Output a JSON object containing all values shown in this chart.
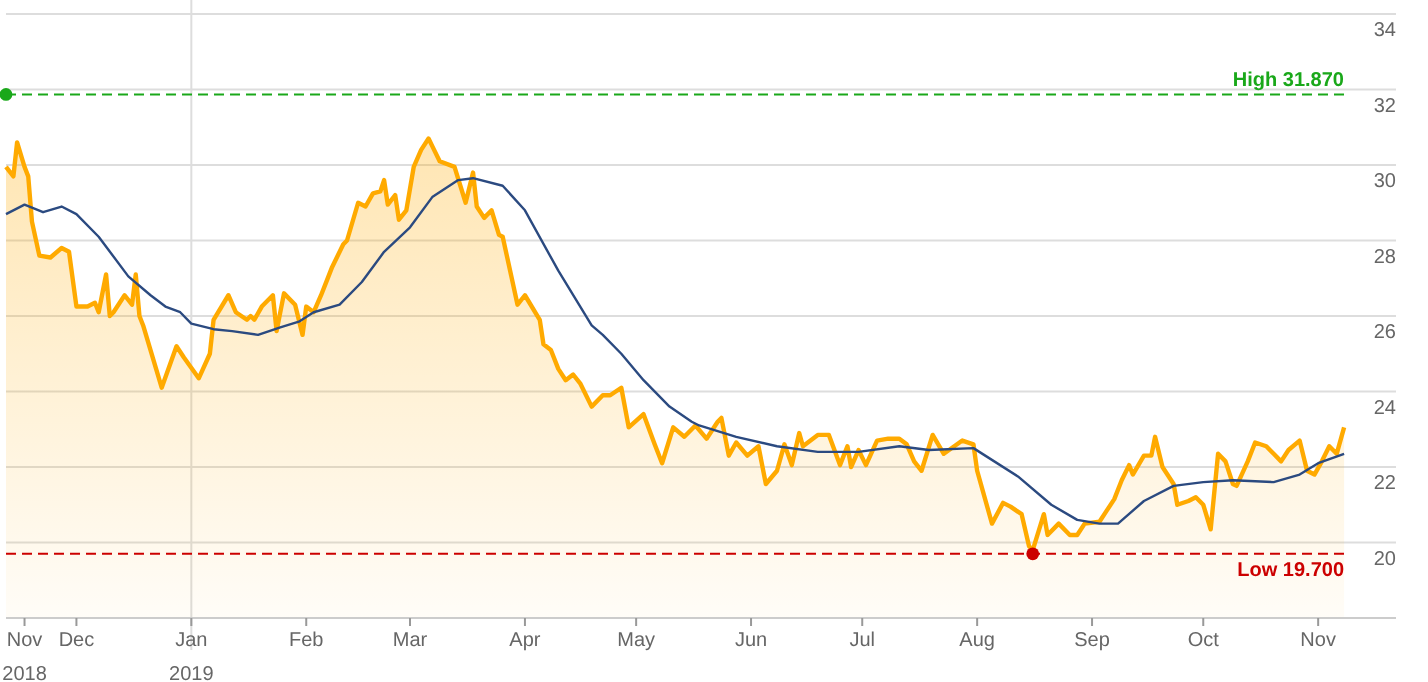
{
  "chart_data": {
    "type": "area",
    "ylim": [
      18,
      34
    ],
    "yticks": [
      20,
      22,
      24,
      26,
      28,
      30,
      32,
      34
    ],
    "xlim": [
      "2018-11-12",
      "2019-11-22"
    ],
    "xticks": [
      {
        "value": "2018-11-17",
        "label": "Nov\n2018"
      },
      {
        "value": "2018-12-01",
        "label": "Dec"
      },
      {
        "value": "2019-01-01",
        "label": "Jan\n2019"
      },
      {
        "value": "2019-02-01",
        "label": "Feb"
      },
      {
        "value": "2019-03-01",
        "label": "Mar"
      },
      {
        "value": "2019-04-01",
        "label": "Apr"
      },
      {
        "value": "2019-05-01",
        "label": "May"
      },
      {
        "value": "2019-06-01",
        "label": "Jun"
      },
      {
        "value": "2019-07-01",
        "label": "Jul"
      },
      {
        "value": "2019-08-01",
        "label": "Aug"
      },
      {
        "value": "2019-09-01",
        "label": "Sep"
      },
      {
        "value": "2019-10-01",
        "label": "Oct"
      },
      {
        "value": "2019-11-01",
        "label": "Nov"
      }
    ],
    "grid": "y",
    "ref_lines": [
      {
        "axis": "y",
        "value": 31.87,
        "label": "High 31.870",
        "color": "#1aa81a",
        "line_style": "dashed"
      },
      {
        "axis": "y",
        "value": 19.7,
        "label": "Low 19.700",
        "color": "#cc0000",
        "line_style": "dashed"
      },
      {
        "axis": "x",
        "value": "2019-01-01",
        "color": "#dddddd",
        "line_style": "solid"
      }
    ],
    "series": [
      {
        "color": "#ffaa00",
        "x": [
          "2018-11-12",
          "2018-11-14",
          "2018-11-15",
          "2018-11-17",
          "2018-11-18",
          "2018-11-19",
          "2018-11-21",
          "2018-11-24",
          "2018-11-27",
          "2018-11-29",
          "2018-12-01",
          "2018-12-04",
          "2018-12-06",
          "2018-12-07",
          "2018-12-09",
          "2018-12-10",
          "2018-12-11",
          "2018-12-14",
          "2018-12-16",
          "2018-12-17",
          "2018-12-18",
          "2018-12-19",
          "2018-12-24",
          "2018-12-28",
          "2018-12-30",
          "2019-01-03",
          "2019-01-06",
          "2019-01-07",
          "2019-01-11",
          "2019-01-13",
          "2019-01-16",
          "2019-01-17",
          "2019-01-18",
          "2019-01-20",
          "2019-01-23",
          "2019-01-24",
          "2019-01-26",
          "2019-01-29",
          "2019-01-31",
          "2019-02-01",
          "2019-02-03",
          "2019-02-05",
          "2019-02-07",
          "2019-02-08",
          "2019-02-11",
          "2019-02-12",
          "2019-02-15",
          "2019-02-17",
          "2019-02-19",
          "2019-02-21",
          "2019-02-22",
          "2019-02-23",
          "2019-02-25",
          "2019-02-26",
          "2019-02-28",
          "2019-03-02",
          "2019-03-04",
          "2019-03-06",
          "2019-03-07",
          "2019-03-09",
          "2019-03-13",
          "2019-03-16",
          "2019-03-18",
          "2019-03-19",
          "2019-03-21",
          "2019-03-23",
          "2019-03-25",
          "2019-03-26",
          "2019-03-30",
          "2019-04-01",
          "2019-04-05",
          "2019-04-06",
          "2019-04-08",
          "2019-04-10",
          "2019-04-12",
          "2019-04-14",
          "2019-04-16",
          "2019-04-19",
          "2019-04-22",
          "2019-04-24",
          "2019-04-27",
          "2019-04-29",
          "2019-05-03",
          "2019-05-06",
          "2019-05-08",
          "2019-05-11",
          "2019-05-14",
          "2019-05-17",
          "2019-05-20",
          "2019-05-23",
          "2019-05-24",
          "2019-05-26",
          "2019-05-28",
          "2019-05-31",
          "2019-06-03",
          "2019-06-05",
          "2019-06-08",
          "2019-06-10",
          "2019-06-12",
          "2019-06-14",
          "2019-06-15",
          "2019-06-19",
          "2019-06-22",
          "2019-06-25",
          "2019-06-27",
          "2019-06-28",
          "2019-06-30",
          "2019-07-02",
          "2019-07-05",
          "2019-07-08",
          "2019-07-11",
          "2019-07-13",
          "2019-07-15",
          "2019-07-17",
          "2019-07-20",
          "2019-07-23",
          "2019-07-28",
          "2019-07-31",
          "2019-08-01",
          "2019-08-05",
          "2019-08-08",
          "2019-08-10",
          "2019-08-13",
          "2019-08-15",
          "2019-08-16",
          "2019-08-19",
          "2019-08-20",
          "2019-08-23",
          "2019-08-26",
          "2019-08-28",
          "2019-08-30",
          "2019-09-03",
          "2019-09-05",
          "2019-09-07",
          "2019-09-09",
          "2019-09-11",
          "2019-09-12",
          "2019-09-15",
          "2019-09-17",
          "2019-09-18",
          "2019-09-20",
          "2019-09-23",
          "2019-09-24",
          "2019-09-27",
          "2019-09-29",
          "2019-10-01",
          "2019-10-03",
          "2019-10-05",
          "2019-10-07",
          "2019-10-09",
          "2019-10-10",
          "2019-10-13",
          "2019-10-15",
          "2019-10-18",
          "2019-10-20",
          "2019-10-22",
          "2019-10-24",
          "2019-10-27",
          "2019-10-29",
          "2019-10-31",
          "2019-11-02",
          "2019-11-04",
          "2019-11-06",
          "2019-11-08"
        ],
        "values": [
          29.95,
          29.7,
          30.6,
          29.95,
          29.7,
          28.5,
          27.6,
          27.55,
          27.8,
          27.7,
          26.25,
          26.25,
          26.35,
          26.1,
          27.1,
          26.0,
          26.1,
          26.55,
          26.3,
          27.1,
          26.0,
          25.75,
          24.1,
          25.2,
          24.9,
          24.35,
          25.0,
          25.9,
          26.55,
          26.1,
          25.9,
          26.0,
          25.9,
          26.25,
          26.55,
          25.6,
          26.6,
          26.3,
          25.5,
          26.25,
          26.1,
          26.55,
          27.05,
          27.3,
          27.9,
          28.0,
          29.0,
          28.9,
          29.25,
          29.3,
          29.6,
          28.95,
          29.2,
          28.55,
          28.8,
          29.95,
          30.4,
          30.7,
          30.5,
          30.1,
          29.95,
          29.0,
          29.8,
          28.9,
          28.6,
          28.8,
          28.15,
          28.1,
          26.3,
          26.55,
          25.9,
          25.25,
          25.1,
          24.6,
          24.3,
          24.45,
          24.2,
          23.6,
          23.9,
          23.9,
          24.1,
          23.05,
          23.4,
          22.6,
          22.1,
          23.05,
          22.8,
          23.1,
          22.75,
          23.2,
          23.3,
          22.3,
          22.65,
          22.3,
          22.55,
          21.55,
          21.9,
          22.6,
          22.05,
          22.9,
          22.55,
          22.85,
          22.85,
          22.05,
          22.55,
          22.0,
          22.45,
          22.05,
          22.7,
          22.75,
          22.75,
          22.6,
          22.15,
          21.9,
          22.85,
          22.35,
          22.7,
          22.6,
          21.9,
          20.5,
          21.05,
          20.95,
          20.75,
          19.9,
          19.8,
          20.75,
          20.2,
          20.5,
          20.2,
          20.2,
          20.5,
          20.55,
          20.85,
          21.15,
          21.65,
          22.05,
          21.8,
          22.3,
          22.3,
          22.8,
          22.0,
          21.55,
          21.0,
          21.1,
          21.2,
          21.0,
          20.35,
          22.35,
          22.15,
          21.55,
          21.5,
          22.15,
          22.65,
          22.55,
          22.35,
          22.15,
          22.45,
          22.7,
          21.9,
          21.8,
          22.15,
          22.55,
          22.35,
          23.05
        ]
      },
      {
        "type": "line",
        "color": "#2b4a80",
        "x": [
          "2018-11-12",
          "2018-11-17",
          "2018-11-22",
          "2018-11-27",
          "2018-12-01",
          "2018-12-07",
          "2018-12-15",
          "2018-12-21",
          "2018-12-25",
          "2018-12-29",
          "2019-01-01",
          "2019-01-07",
          "2019-01-12",
          "2019-01-19",
          "2019-01-25",
          "2019-01-30",
          "2019-02-03",
          "2019-02-10",
          "2019-02-16",
          "2019-02-22",
          "2019-03-01",
          "2019-03-07",
          "2019-03-14",
          "2019-03-18",
          "2019-03-26",
          "2019-04-01",
          "2019-04-10",
          "2019-04-19",
          "2019-04-22",
          "2019-04-27",
          "2019-05-03",
          "2019-05-10",
          "2019-05-16",
          "2019-05-18",
          "2019-05-28",
          "2019-06-08",
          "2019-06-19",
          "2019-06-30",
          "2019-07-11",
          "2019-07-19",
          "2019-07-31",
          "2019-08-12",
          "2019-08-21",
          "2019-08-28",
          "2019-09-03",
          "2019-09-08",
          "2019-09-15",
          "2019-09-23",
          "2019-10-01",
          "2019-10-09",
          "2019-10-20",
          "2019-10-27",
          "2019-11-01",
          "2019-11-08"
        ],
        "values": [
          28.7,
          28.95,
          28.75,
          28.9,
          28.7,
          28.1,
          27.05,
          26.55,
          26.25,
          26.1,
          25.8,
          25.65,
          25.6,
          25.5,
          25.7,
          25.85,
          26.1,
          26.3,
          26.9,
          27.7,
          28.35,
          29.15,
          29.6,
          29.65,
          29.45,
          28.8,
          27.2,
          25.75,
          25.5,
          25.0,
          24.3,
          23.6,
          23.2,
          23.1,
          22.8,
          22.55,
          22.4,
          22.4,
          22.55,
          22.45,
          22.5,
          21.75,
          21.0,
          20.6,
          20.5,
          20.5,
          21.1,
          21.5,
          21.6,
          21.65,
          21.6,
          21.8,
          22.1,
          22.35
        ]
      },
      {
        "type": "scatter",
        "marker": "circle",
        "x": [
          "2018-11-12",
          "2019-08-16"
        ],
        "values": [
          31.87,
          19.7
        ],
        "colors": [
          "#1aa81a",
          "#cc0000"
        ]
      }
    ]
  }
}
